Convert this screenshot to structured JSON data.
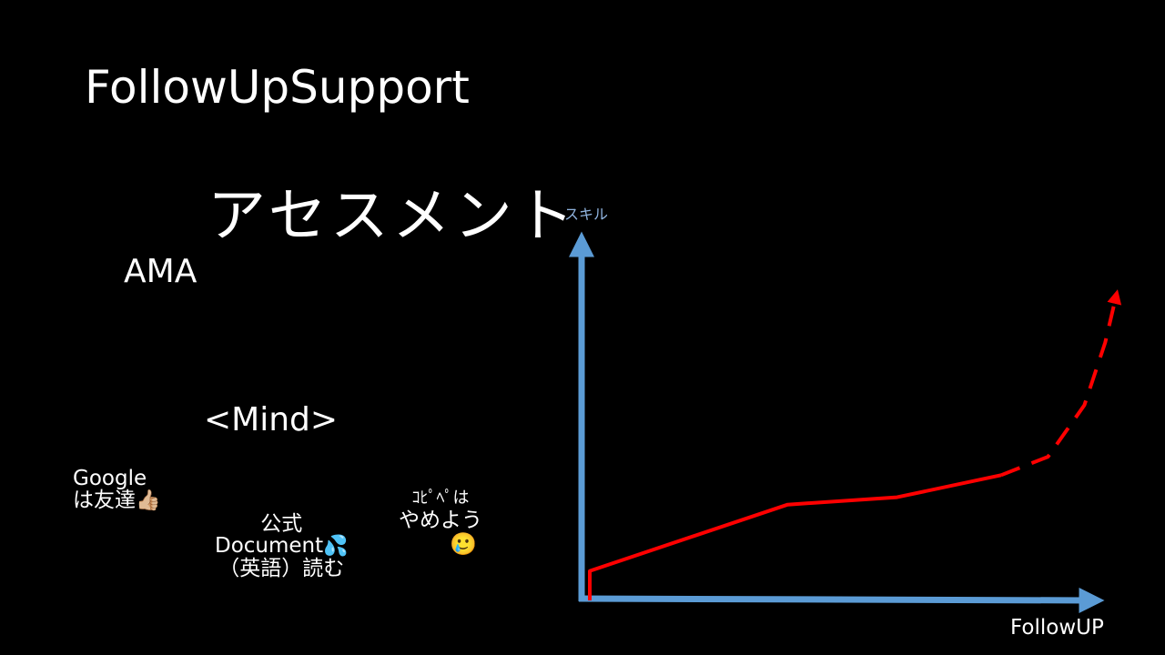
{
  "slide": {
    "title": "FollowUpSupport",
    "heading": "アセスメント",
    "ama": "AMA",
    "mind_heading": "<Mind>"
  },
  "notes": {
    "google": {
      "line1": "Google",
      "line2": "は友達",
      "emoji": "👍🏼"
    },
    "docs": {
      "line1": "公式",
      "line2": "Document",
      "emoji": "💦",
      "line3": "（英語）読む"
    },
    "copy": {
      "line1": "ｺﾋﾟﾍﾟは",
      "line2": "やめよう",
      "emoji": "🥲"
    }
  },
  "graph": {
    "y_axis_label": "スキル",
    "x_axis_label": "FollowUP",
    "axis_color": "#5b9bd5",
    "curve_color": "#ff0000",
    "curve_solid": [
      [
        0,
        0
      ],
      [
        0,
        8
      ],
      [
        38,
        26
      ],
      [
        59,
        28
      ],
      [
        79,
        34
      ]
    ],
    "curve_dashed": [
      [
        79,
        34
      ],
      [
        88,
        39
      ],
      [
        95,
        53
      ],
      [
        99,
        70
      ],
      [
        101,
        82
      ]
    ]
  }
}
